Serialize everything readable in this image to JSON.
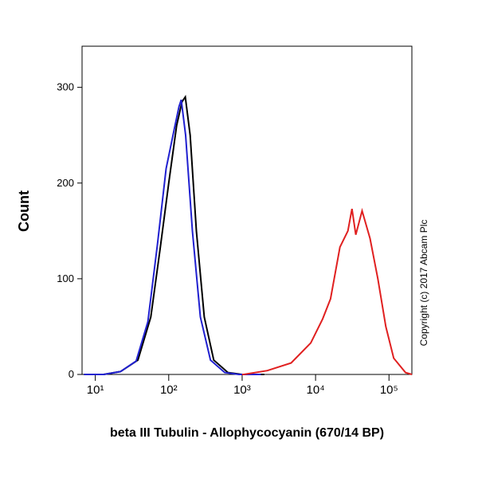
{
  "chart_data": {
    "type": "line",
    "x_label": "beta III Tubulin - Allophycocyanin (670/14 BP)",
    "y_label": "Count",
    "annotation": "Copyright (c) 2017 Abcam Plc",
    "log_x": true,
    "xlim": [
      6.6,
      205000
    ],
    "xticks": [
      {
        "value": 10,
        "label": "10¹"
      },
      {
        "value": 100,
        "label": "10²"
      },
      {
        "value": 1000,
        "label": "10³"
      },
      {
        "value": 10000,
        "label": "10⁴"
      },
      {
        "value": 100000,
        "label": "10⁵"
      }
    ],
    "ylim": [
      0,
      343
    ],
    "yticks": [
      0,
      100,
      200,
      300
    ],
    "series": [
      {
        "color": "#000000",
        "x": [
          7,
          13,
          22,
          38,
          57,
          76,
          100,
          128,
          152,
          168,
          196,
          238,
          305,
          410,
          640,
          1000,
          2000
        ],
        "values": [
          0,
          0,
          3,
          15,
          60,
          130,
          200,
          260,
          285,
          290,
          250,
          150,
          60,
          15,
          2,
          0,
          0
        ]
      },
      {
        "color": "#2020d0",
        "x": [
          7,
          13,
          22,
          36,
          52,
          70,
          92,
          118,
          138,
          148,
          170,
          210,
          270,
          370,
          580,
          900,
          1800
        ],
        "values": [
          0,
          0,
          3,
          14,
          55,
          135,
          215,
          255,
          280,
          287,
          250,
          150,
          60,
          15,
          2,
          0,
          0
        ]
      },
      {
        "color": "#e02020",
        "x": [
          1000,
          1050,
          2200,
          4640,
          8600,
          12500,
          16000,
          21500,
          27600,
          31300,
          35300,
          43000,
          55200,
          70600,
          90600,
          116000,
          168000,
          205000
        ],
        "values": [
          0,
          0,
          4,
          12,
          33,
          58,
          79,
          133,
          150,
          173,
          146,
          171,
          142,
          100,
          50,
          17,
          2,
          0
        ]
      }
    ]
  }
}
